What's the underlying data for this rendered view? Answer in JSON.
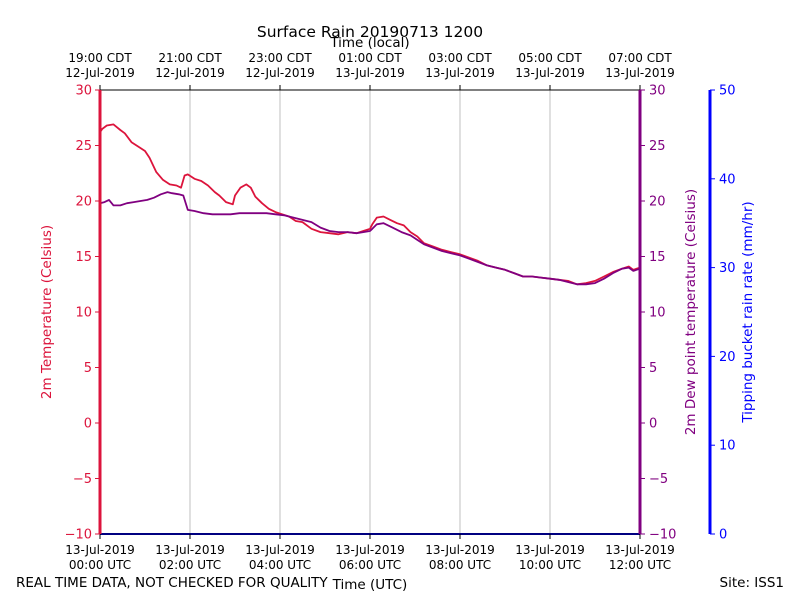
{
  "chart_data": {
    "type": "line",
    "title": "Surface Rain 20190713 1200",
    "top_axis_label": "Time (local)",
    "xlabel": "Time (UTC)",
    "bottom_ticks": [
      {
        "hour": 0,
        "line1": "13-Jul-2019",
        "line2": "00:00 UTC"
      },
      {
        "hour": 2,
        "line1": "13-Jul-2019",
        "line2": "02:00 UTC"
      },
      {
        "hour": 4,
        "line1": "13-Jul-2019",
        "line2": "04:00 UTC"
      },
      {
        "hour": 6,
        "line1": "13-Jul-2019",
        "line2": "06:00 UTC"
      },
      {
        "hour": 8,
        "line1": "13-Jul-2019",
        "line2": "08:00 UTC"
      },
      {
        "hour": 10,
        "line1": "13-Jul-2019",
        "line2": "10:00 UTC"
      },
      {
        "hour": 12,
        "line1": "13-Jul-2019",
        "line2": "12:00 UTC"
      }
    ],
    "top_ticks": [
      {
        "hour": 0,
        "line1": "19:00 CDT",
        "line2": "12-Jul-2019"
      },
      {
        "hour": 2,
        "line1": "21:00 CDT",
        "line2": "12-Jul-2019"
      },
      {
        "hour": 4,
        "line1": "23:00 CDT",
        "line2": "12-Jul-2019"
      },
      {
        "hour": 6,
        "line1": "01:00 CDT",
        "line2": "13-Jul-2019"
      },
      {
        "hour": 8,
        "line1": "03:00 CDT",
        "line2": "13-Jul-2019"
      },
      {
        "hour": 10,
        "line1": "05:00 CDT",
        "line2": "13-Jul-2019"
      },
      {
        "hour": 12,
        "line1": "07:00 CDT",
        "line2": "13-Jul-2019"
      }
    ],
    "xlim": [
      0,
      12
    ],
    "left_axis": {
      "label": "2m Temperature (Celsius)",
      "ylim": [
        -10,
        30
      ],
      "ticks": [
        -10,
        -5,
        0,
        5,
        10,
        15,
        20,
        25,
        30
      ],
      "tick_labels": [
        "−10",
        "−5",
        "0",
        "5",
        "10",
        "15",
        "20",
        "25",
        "30"
      ],
      "color": "#dc143c"
    },
    "right_axis_1": {
      "label": "2m Dew point temperature (Celsius)",
      "ylim": [
        -10,
        30
      ],
      "ticks": [
        -10,
        -5,
        0,
        5,
        10,
        15,
        20,
        25,
        30
      ],
      "tick_labels": [
        "−10",
        "−5",
        "0",
        "5",
        "10",
        "15",
        "20",
        "25",
        "30"
      ],
      "color": "#800080"
    },
    "right_axis_2": {
      "label": "Tipping bucket rain rate (mm/hr)",
      "ylim": [
        0,
        50
      ],
      "ticks": [
        0,
        10,
        20,
        30,
        40,
        50
      ],
      "tick_labels": [
        "0",
        "10",
        "20",
        "30",
        "40",
        "50"
      ],
      "color": "#0000ff"
    },
    "grid": "vertical",
    "series": [
      {
        "name": "2m Temperature",
        "color": "#dc143c",
        "axis": "left",
        "x": [
          0,
          0.05,
          0.15,
          0.3,
          0.45,
          0.55,
          0.7,
          0.85,
          1.0,
          1.1,
          1.25,
          1.4,
          1.55,
          1.7,
          1.8,
          1.88,
          1.95,
          2.1,
          2.25,
          2.4,
          2.55,
          2.65,
          2.8,
          2.95,
          3.0,
          3.12,
          3.25,
          3.35,
          3.45,
          3.6,
          3.75,
          3.9,
          4.05,
          4.2,
          4.35,
          4.5,
          4.7,
          4.9,
          5.1,
          5.3,
          5.5,
          5.7,
          5.85,
          6.0,
          6.05,
          6.15,
          6.3,
          6.45,
          6.6,
          6.75,
          6.9,
          7.05,
          7.2,
          7.4,
          7.6,
          7.8,
          8.0,
          8.2,
          8.4,
          8.6,
          8.8,
          9.0,
          9.2,
          9.4,
          9.6,
          9.8,
          10.0,
          10.2,
          10.4,
          10.6,
          10.8,
          11.0,
          11.2,
          11.4,
          11.6,
          11.75,
          11.85,
          12.0
        ],
        "values": [
          26.2,
          26.5,
          26.8,
          26.9,
          26.4,
          26.1,
          25.3,
          24.9,
          24.5,
          23.9,
          22.6,
          21.9,
          21.5,
          21.4,
          21.2,
          22.3,
          22.4,
          22.0,
          21.8,
          21.4,
          20.8,
          20.5,
          19.9,
          19.7,
          20.5,
          21.2,
          21.5,
          21.2,
          20.4,
          19.8,
          19.3,
          19.0,
          18.8,
          18.6,
          18.2,
          18.1,
          17.5,
          17.2,
          17.1,
          17.0,
          17.2,
          17.1,
          17.3,
          17.5,
          17.9,
          18.5,
          18.6,
          18.3,
          18.0,
          17.8,
          17.2,
          16.8,
          16.2,
          15.9,
          15.6,
          15.4,
          15.2,
          14.9,
          14.6,
          14.2,
          14.0,
          13.8,
          13.5,
          13.2,
          13.2,
          13.1,
          13.0,
          12.9,
          12.8,
          12.5,
          12.6,
          12.8,
          13.2,
          13.6,
          13.9,
          14.1,
          13.8,
          14.0
        ]
      },
      {
        "name": "2m Dew point temperature",
        "color": "#800080",
        "axis": "right_1",
        "x": [
          0,
          0.1,
          0.2,
          0.3,
          0.45,
          0.6,
          0.75,
          0.9,
          1.05,
          1.2,
          1.35,
          1.5,
          1.6,
          1.75,
          1.85,
          1.95,
          2.1,
          2.3,
          2.5,
          2.7,
          2.9,
          3.1,
          3.3,
          3.5,
          3.7,
          3.9,
          4.1,
          4.3,
          4.5,
          4.7,
          4.9,
          5.1,
          5.3,
          5.5,
          5.7,
          5.85,
          6.0,
          6.05,
          6.15,
          6.3,
          6.5,
          6.7,
          6.9,
          7.05,
          7.2,
          7.4,
          7.6,
          7.8,
          8.0,
          8.2,
          8.4,
          8.6,
          8.8,
          9.0,
          9.2,
          9.4,
          9.6,
          9.8,
          10.0,
          10.2,
          10.4,
          10.6,
          10.8,
          11.0,
          11.2,
          11.4,
          11.6,
          11.75,
          11.85,
          12.0
        ],
        "values": [
          19.8,
          19.9,
          20.1,
          19.6,
          19.6,
          19.8,
          19.9,
          20.0,
          20.1,
          20.3,
          20.6,
          20.8,
          20.7,
          20.6,
          20.5,
          19.2,
          19.1,
          18.9,
          18.8,
          18.8,
          18.8,
          18.9,
          18.9,
          18.9,
          18.9,
          18.8,
          18.7,
          18.5,
          18.3,
          18.1,
          17.6,
          17.3,
          17.2,
          17.2,
          17.1,
          17.2,
          17.3,
          17.5,
          17.9,
          18.0,
          17.6,
          17.2,
          16.9,
          16.5,
          16.1,
          15.8,
          15.5,
          15.3,
          15.1,
          14.8,
          14.5,
          14.2,
          14.0,
          13.8,
          13.5,
          13.2,
          13.2,
          13.1,
          13.0,
          12.9,
          12.7,
          12.5,
          12.5,
          12.6,
          13.0,
          13.5,
          13.9,
          14.0,
          13.7,
          13.9
        ]
      },
      {
        "name": "Tipping bucket rain rate",
        "color": "#0000ff",
        "axis": "right_2",
        "x": [
          0,
          12
        ],
        "values": [
          0,
          0
        ]
      }
    ]
  },
  "footer": {
    "left": "REAL TIME DATA, NOT CHECKED FOR QUALITY",
    "right": "Site: ISS1"
  }
}
